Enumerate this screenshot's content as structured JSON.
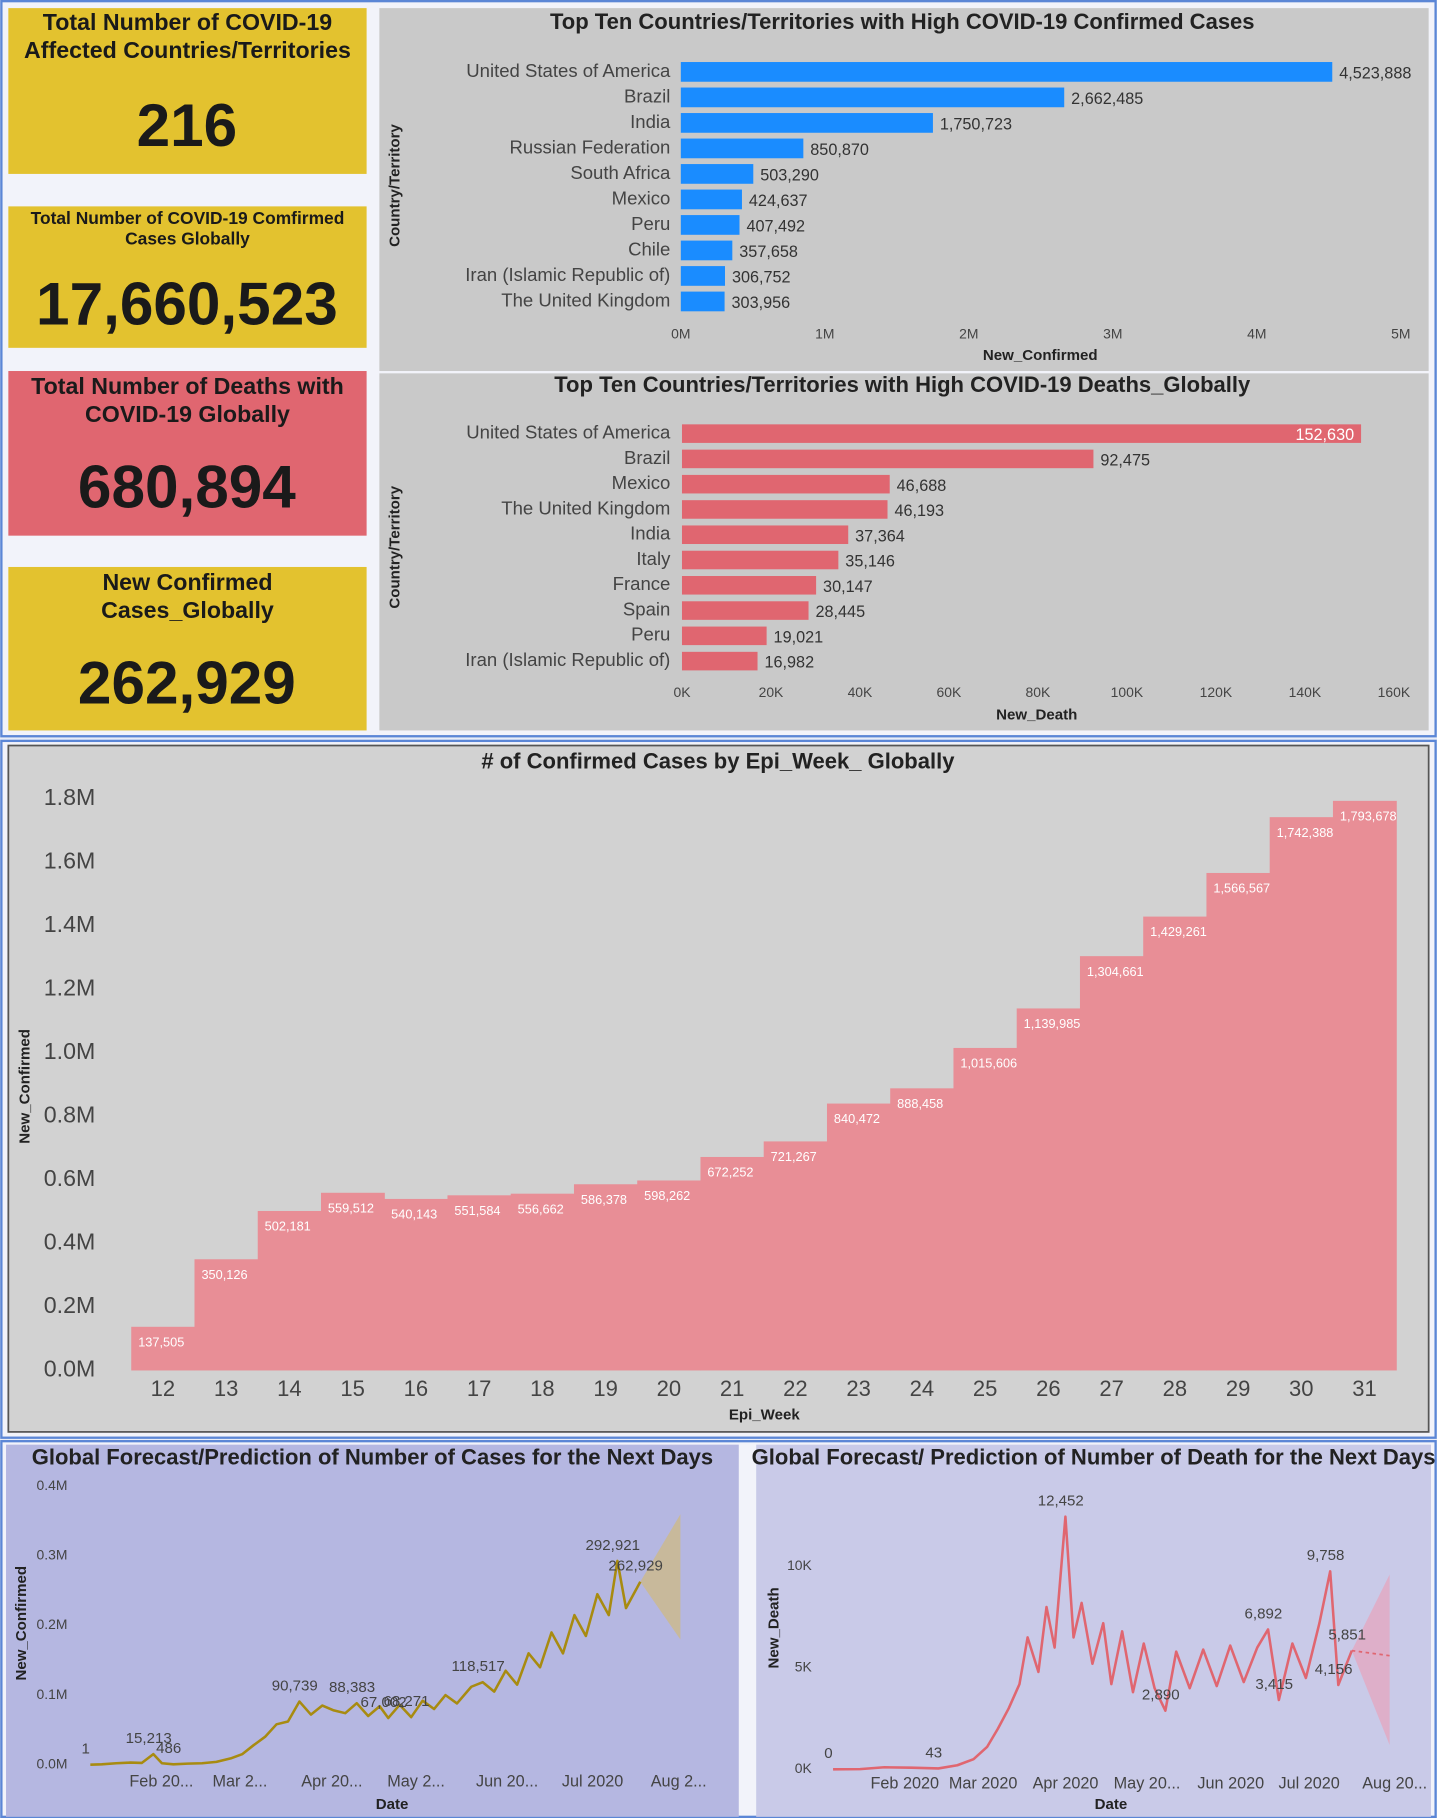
{
  "cards": [
    {
      "title": "Total Number of COVID-19 Affected Countries/Territories",
      "value": "216"
    },
    {
      "title": "Total Number of COVID-19 Comfirmed Cases Globally",
      "value": "17,660,523"
    },
    {
      "title": "Total Number of Deaths with COVID-19 Globally",
      "value": "680,894"
    },
    {
      "title": "New Confirmed Cases_Globally",
      "value": "262,929"
    }
  ],
  "chart_data": [
    {
      "type": "hbar",
      "title": "Top Ten Countries/Territories with High COVID-19 Confirmed Cases",
      "x_label": "New_Confirmed",
      "y_label": "Country/Territory",
      "color": "#1a8cff",
      "categories": [
        "United States of America",
        "Brazil",
        "India",
        "Russian Federation",
        "South Africa",
        "Mexico",
        "Peru",
        "Chile",
        "Iran (Islamic Republic of)",
        "The United Kingdom"
      ],
      "values": [
        4523888,
        2662485,
        1750723,
        850870,
        503290,
        424637,
        407492,
        357658,
        306752,
        303956
      ],
      "value_labels": [
        "4,523,888",
        "2,662,485",
        "1,750,723",
        "850,870",
        "503,290",
        "424,637",
        "407,492",
        "357,658",
        "306,752",
        "303,956"
      ],
      "xlim": [
        0,
        5000000
      ],
      "xticks": [
        {
          "value": 0,
          "label": "0M"
        },
        {
          "value": 1000000,
          "label": "1M"
        },
        {
          "value": 2000000,
          "label": "2M"
        },
        {
          "value": 3000000,
          "label": "3M"
        },
        {
          "value": 4000000,
          "label": "4M"
        },
        {
          "value": 5000000,
          "label": "5M"
        }
      ]
    },
    {
      "type": "hbar",
      "title": "Top Ten Countries/Territories with High COVID-19 Deaths_Globally",
      "x_label": "New_Death",
      "y_label": "Country/Territory",
      "color": "#e06670",
      "categories": [
        "United States of America",
        "Brazil",
        "Mexico",
        "The United Kingdom",
        "India",
        "Italy",
        "France",
        "Spain",
        "Peru",
        "Iran (Islamic Republic of)"
      ],
      "values": [
        152630,
        92475,
        46688,
        46193,
        37364,
        35146,
        30147,
        28445,
        19021,
        16982
      ],
      "value_labels": [
        "152,630",
        "92,475",
        "46,688",
        "46,193",
        "37,364",
        "35,146",
        "30,147",
        "28,445",
        "19,021",
        "16,982"
      ],
      "xlim": [
        0,
        160000
      ],
      "xticks": [
        {
          "value": 0,
          "label": "0K"
        },
        {
          "value": 20000,
          "label": "20K"
        },
        {
          "value": 40000,
          "label": "40K"
        },
        {
          "value": 60000,
          "label": "60K"
        },
        {
          "value": 80000,
          "label": "80K"
        },
        {
          "value": 100000,
          "label": "100K"
        },
        {
          "value": 120000,
          "label": "120K"
        },
        {
          "value": 140000,
          "label": "140K"
        },
        {
          "value": 160000,
          "label": "160K"
        }
      ]
    },
    {
      "type": "bar",
      "title": "# of Confirmed Cases by Epi_Week_ Globally",
      "x_label": "Epi_Week",
      "y_label": "New_Confirmed",
      "color": "#e88e96",
      "categories": [
        "12",
        "13",
        "14",
        "15",
        "16",
        "17",
        "18",
        "19",
        "20",
        "21",
        "22",
        "23",
        "24",
        "25",
        "26",
        "27",
        "28",
        "29",
        "30",
        "31"
      ],
      "values": [
        137505,
        350126,
        502181,
        559512,
        540143,
        551584,
        556662,
        586378,
        598262,
        672252,
        721267,
        840472,
        888458,
        1015606,
        1139985,
        1304661,
        1429261,
        1566567,
        1742388,
        1793678
      ],
      "value_labels": [
        "137,505",
        "350,126",
        "502,181",
        "559,512",
        "540,143",
        "551,584",
        "556,662",
        "586,378",
        "598,262",
        "672,252",
        "721,267",
        "840,472",
        "888,458",
        "1,015,606",
        "1,139,985",
        "1,304,661",
        "1,429,261",
        "1,566,567",
        "1,742,388",
        "1,793,678"
      ],
      "ylim": [
        0,
        1800000
      ],
      "yticks": [
        {
          "value": 0,
          "label": "0.0M"
        },
        {
          "value": 200000,
          "label": "0.2M"
        },
        {
          "value": 400000,
          "label": "0.4M"
        },
        {
          "value": 600000,
          "label": "0.6M"
        },
        {
          "value": 800000,
          "label": "0.8M"
        },
        {
          "value": 1000000,
          "label": "1.0M"
        },
        {
          "value": 1200000,
          "label": "1.2M"
        },
        {
          "value": 1400000,
          "label": "1.4M"
        },
        {
          "value": 1600000,
          "label": "1.6M"
        },
        {
          "value": 1800000,
          "label": "1.8M"
        }
      ]
    },
    {
      "type": "line",
      "title": "Global Forecast/Prediction of Number of Cases for the Next Days",
      "x_label": "Date",
      "y_label": "New_Confirmed",
      "color": "#a88b10",
      "x": [
        "2020-01-22",
        "2020-01-26",
        "2020-01-31",
        "2020-02-05",
        "2020-02-09",
        "2020-02-13",
        "2020-02-16",
        "2020-02-20",
        "2020-02-25",
        "2020-03-01",
        "2020-03-06",
        "2020-03-11",
        "2020-03-15",
        "2020-03-19",
        "2020-03-23",
        "2020-03-27",
        "2020-03-31",
        "2020-04-04",
        "2020-04-08",
        "2020-04-12",
        "2020-04-16",
        "2020-04-20",
        "2020-04-24",
        "2020-04-28",
        "2020-05-02",
        "2020-05-05",
        "2020-05-09",
        "2020-05-13",
        "2020-05-17",
        "2020-05-21",
        "2020-05-25",
        "2020-05-29",
        "2020-06-03",
        "2020-06-07",
        "2020-06-11",
        "2020-06-15",
        "2020-06-19",
        "2020-06-23",
        "2020-06-27",
        "2020-07-01",
        "2020-07-05",
        "2020-07-09",
        "2020-07-13",
        "2020-07-17",
        "2020-07-21",
        "2020-07-24",
        "2020-07-27",
        "2020-08-01"
      ],
      "values": [
        1,
        500,
        2000,
        3000,
        2500,
        15213,
        2000,
        486,
        1500,
        2000,
        4000,
        9000,
        15000,
        28000,
        40000,
        58000,
        62000,
        90739,
        72000,
        85000,
        78000,
        74000,
        88383,
        70000,
        84000,
        67002,
        86000,
        68271,
        92000,
        80000,
        100000,
        88000,
        112000,
        118517,
        105000,
        135000,
        115000,
        160000,
        140000,
        190000,
        160000,
        215000,
        185000,
        245000,
        215000,
        292921,
        225000,
        262929
      ],
      "value_labels": [
        "1",
        null,
        null,
        null,
        null,
        "15,213",
        null,
        "486",
        null,
        null,
        null,
        null,
        null,
        null,
        null,
        null,
        null,
        "90,739",
        null,
        null,
        null,
        null,
        "88,383",
        null,
        null,
        "67,002",
        null,
        "68,271",
        null,
        null,
        null,
        null,
        null,
        "118,517",
        null,
        null,
        null,
        null,
        null,
        null,
        null,
        null,
        null,
        null,
        null,
        "292,921",
        null,
        "262,929"
      ],
      "forecast": {
        "color": "#cdb98a",
        "x": [
          "2020-08-01",
          "2020-08-15"
        ],
        "upper": [
          262929,
          360000
        ],
        "lower": [
          262929,
          180000
        ]
      },
      "xlim": [
        "2020-01-12",
        "2020-08-20"
      ],
      "xticks": [
        {
          "value": "2020-02-01",
          "label": "Feb 20..."
        },
        {
          "value": "2020-03-01",
          "label": "Mar 2..."
        },
        {
          "value": "2020-04-01",
          "label": "Apr 20..."
        },
        {
          "value": "2020-05-01",
          "label": "May 2..."
        },
        {
          "value": "2020-06-01",
          "label": "Jun 20..."
        },
        {
          "value": "2020-07-01",
          "label": "Jul 2020"
        },
        {
          "value": "2020-08-01",
          "label": "Aug 2..."
        }
      ],
      "ylim": [
        0,
        400000
      ],
      "yticks": [
        {
          "value": 0,
          "label": "0.0M"
        },
        {
          "value": 100000,
          "label": "0.1M"
        },
        {
          "value": 200000,
          "label": "0.2M"
        },
        {
          "value": 300000,
          "label": "0.3M"
        },
        {
          "value": 400000,
          "label": "0.4M"
        }
      ]
    },
    {
      "type": "line",
      "title": "Global Forecast/ Prediction of Number of Death for the Next Days",
      "x_label": "Date",
      "y_label": "New_Death",
      "color": "#e06670",
      "x": [
        "2020-01-22",
        "2020-02-01",
        "2020-02-10",
        "2020-02-20",
        "2020-03-01",
        "2020-03-08",
        "2020-03-14",
        "2020-03-19",
        "2020-03-23",
        "2020-03-27",
        "2020-03-31",
        "2020-04-03",
        "2020-04-07",
        "2020-04-10",
        "2020-04-13",
        "2020-04-17",
        "2020-04-20",
        "2020-04-23",
        "2020-04-27",
        "2020-05-01",
        "2020-05-04",
        "2020-05-08",
        "2020-05-12",
        "2020-05-16",
        "2020-05-20",
        "2020-05-24",
        "2020-05-28",
        "2020-06-02",
        "2020-06-07",
        "2020-06-12",
        "2020-06-17",
        "2020-06-22",
        "2020-06-27",
        "2020-07-01",
        "2020-07-05",
        "2020-07-10",
        "2020-07-15",
        "2020-07-20",
        "2020-07-24",
        "2020-07-27",
        "2020-08-01"
      ],
      "values": [
        0,
        10,
        100,
        80,
        43,
        200,
        500,
        1100,
        2000,
        3000,
        4200,
        6500,
        4800,
        8000,
        6000,
        12452,
        6500,
        8200,
        5200,
        7200,
        4200,
        6800,
        3800,
        6200,
        4000,
        2890,
        5800,
        4000,
        5900,
        4100,
        6100,
        4300,
        6000,
        6892,
        3415,
        6200,
        4500,
        7200,
        9758,
        4156,
        5851
      ],
      "value_labels": [
        "0",
        null,
        null,
        null,
        "43",
        null,
        null,
        null,
        null,
        null,
        null,
        null,
        null,
        null,
        null,
        "12,452",
        null,
        null,
        null,
        null,
        null,
        null,
        null,
        null,
        null,
        "2,890",
        null,
        null,
        null,
        null,
        null,
        null,
        null,
        "6,892",
        "3,415",
        null,
        null,
        null,
        "9,758",
        "4,156",
        "5,851"
      ],
      "forecast": {
        "color": "#e3a8c0",
        "x": [
          "2020-08-01",
          "2020-08-15"
        ],
        "upper": [
          5851,
          9600
        ],
        "lower": [
          5851,
          1200
        ],
        "values": [
          5851,
          5600
        ]
      },
      "xlim": [
        "2020-01-12",
        "2020-08-20"
      ],
      "xticks": [
        {
          "value": "2020-02-01",
          "label": "Feb 2020"
        },
        {
          "value": "2020-03-01",
          "label": "Mar 2020"
        },
        {
          "value": "2020-04-01",
          "label": "Apr 2020"
        },
        {
          "value": "2020-05-01",
          "label": "May 20..."
        },
        {
          "value": "2020-06-01",
          "label": "Jun 2020"
        },
        {
          "value": "2020-07-01",
          "label": "Jul 2020"
        },
        {
          "value": "2020-08-01",
          "label": "Aug 20..."
        }
      ],
      "ylim": [
        0,
        14000
      ],
      "yticks": [
        {
          "value": 0,
          "label": "0K"
        },
        {
          "value": 5000,
          "label": "5K"
        },
        {
          "value": 10000,
          "label": "10K"
        }
      ]
    }
  ]
}
